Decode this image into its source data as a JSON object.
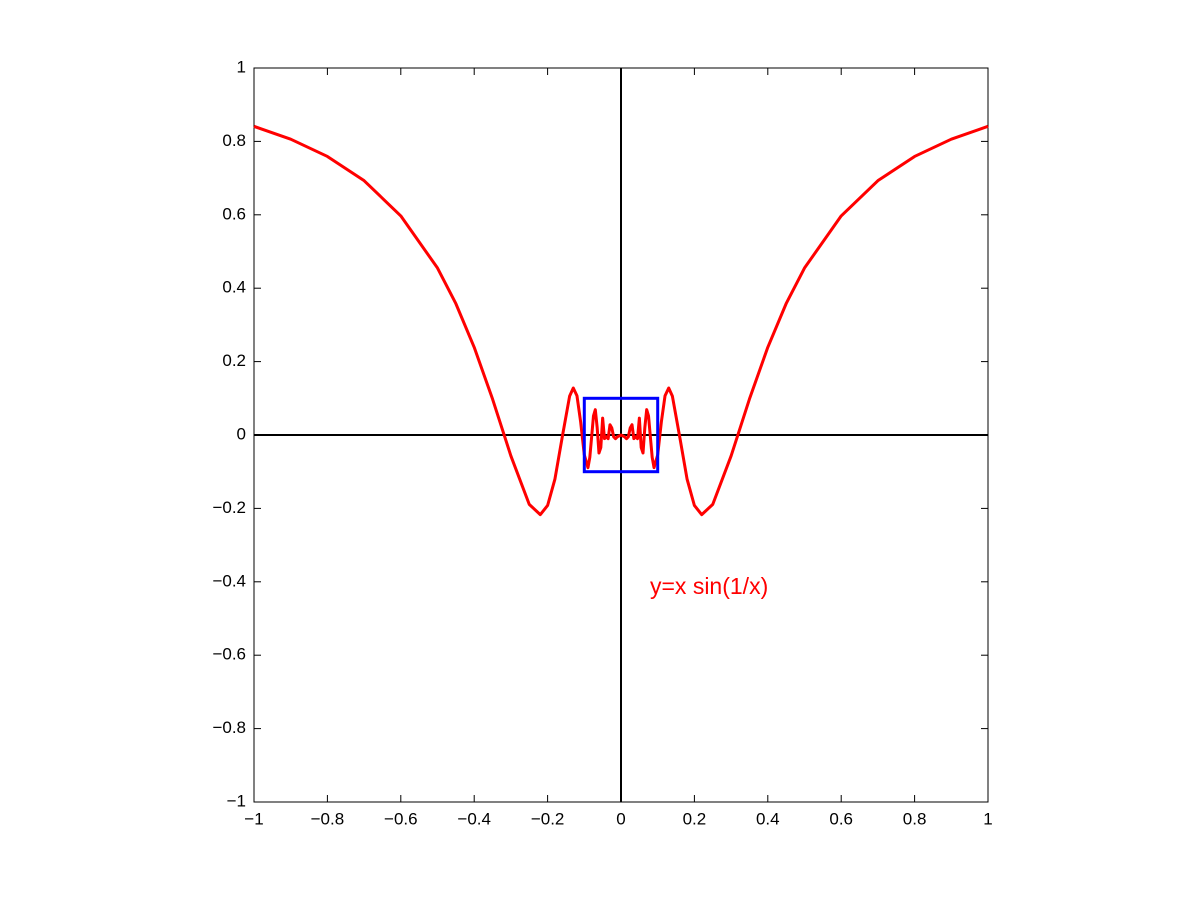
{
  "chart_data": {
    "type": "line",
    "annotation": "y=x sin(1/x)",
    "x": [
      -1,
      -0.9,
      -0.8,
      -0.7,
      -0.6,
      -0.5,
      -0.45,
      -0.4,
      -0.35,
      -0.3,
      -0.25,
      -0.22,
      -0.2,
      -0.18,
      -0.16,
      -0.14,
      -0.13,
      -0.12,
      -0.11,
      -0.1,
      -0.09,
      -0.085,
      -0.08,
      -0.075,
      -0.07,
      -0.065,
      -0.06,
      -0.055,
      -0.05,
      -0.045,
      -0.04,
      -0.035,
      -0.03,
      -0.025,
      -0.02,
      -0.015,
      -0.01,
      0,
      0.01,
      0.015,
      0.02,
      0.025,
      0.03,
      0.035,
      0.04,
      0.045,
      0.05,
      0.055,
      0.06,
      0.065,
      0.07,
      0.075,
      0.08,
      0.085,
      0.09,
      0.1,
      0.11,
      0.12,
      0.13,
      0.14,
      0.16,
      0.18,
      0.2,
      0.22,
      0.25,
      0.3,
      0.35,
      0.4,
      0.45,
      0.5,
      0.6,
      0.7,
      0.8,
      0.9,
      1
    ],
    "series": [
      {
        "color": "#ff0000",
        "values": [
          0.841,
          0.806,
          0.759,
          0.693,
          0.597,
          0.455,
          0.358,
          0.239,
          0.098,
          -0.057,
          -0.189,
          -0.217,
          -0.192,
          -0.12,
          -0.005,
          0.106,
          0.128,
          0.107,
          0.036,
          -0.054,
          -0.089,
          -0.061,
          -0.005,
          0.052,
          0.069,
          0.021,
          -0.049,
          -0.034,
          0.046,
          -0.01,
          -0.005,
          -0.01,
          0.028,
          0.019,
          -0.005,
          -0.01,
          -0.005,
          0,
          -0.005,
          -0.01,
          -0.005,
          0.019,
          0.028,
          -0.01,
          -0.005,
          -0.01,
          0.046,
          -0.034,
          -0.049,
          0.021,
          0.069,
          0.052,
          -0.005,
          -0.061,
          -0.089,
          -0.054,
          0.036,
          0.107,
          0.128,
          0.106,
          -0.005,
          -0.12,
          -0.192,
          -0.217,
          -0.189,
          -0.057,
          0.098,
          0.239,
          0.358,
          0.455,
          0.597,
          0.693,
          0.759,
          0.806,
          0.841
        ]
      }
    ],
    "highlight_box": {
      "x": [
        -0.1,
        0.1
      ],
      "y": [
        -0.1,
        0.1
      ],
      "color": "#0000ff"
    },
    "xlim": [
      -1,
      1
    ],
    "ylim": [
      -1,
      1
    ],
    "xticks": [
      {
        "value": -1,
        "label": "−1"
      },
      {
        "value": -0.8,
        "label": "−0.8"
      },
      {
        "value": -0.6,
        "label": "−0.6"
      },
      {
        "value": -0.4,
        "label": "−0.4"
      },
      {
        "value": -0.2,
        "label": "−0.2"
      },
      0,
      0.2,
      0.4,
      0.6,
      0.8,
      1
    ],
    "yticks": [
      {
        "value": -1,
        "label": "−1"
      },
      {
        "value": -0.8,
        "label": "−0.8"
      },
      {
        "value": -0.6,
        "label": "−0.6"
      },
      {
        "value": -0.4,
        "label": "−0.4"
      },
      {
        "value": -0.2,
        "label": "−0.2"
      },
      0,
      0.2,
      0.4,
      0.6,
      0.8,
      1
    ]
  }
}
